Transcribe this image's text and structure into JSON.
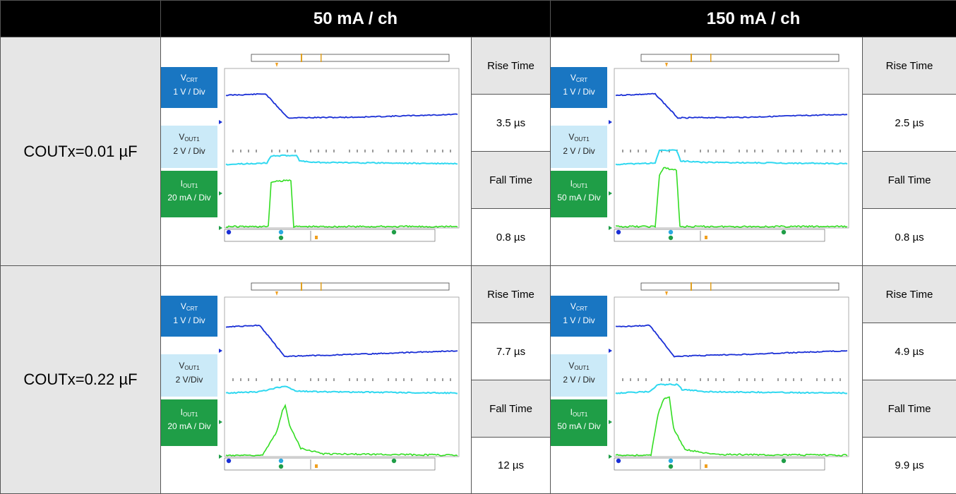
{
  "header": {
    "col1": "50 mA / ch",
    "col2": "150 mA / ch"
  },
  "rows": [
    {
      "label": "COUTx=0.01 µF",
      "cells": [
        {
          "vcrt": {
            "sym": "V",
            "sub": "CRT",
            "scale": "1 V / Div"
          },
          "vout": {
            "sym": "V",
            "sub": "OUT1",
            "scale": "2 V / Div"
          },
          "iout": {
            "sym": "I",
            "sub": "OUT1",
            "scale": "20 mA / Div"
          },
          "rise_label": "Rise Time",
          "rise_value": "3.5 µs",
          "fall_label": "Fall Time",
          "fall_value": "0.8 µs"
        },
        {
          "vcrt": {
            "sym": "V",
            "sub": "CRT",
            "scale": "1 V / Div"
          },
          "vout": {
            "sym": "V",
            "sub": "OUT1",
            "scale": "2 V / Div"
          },
          "iout": {
            "sym": "I",
            "sub": "OUT1",
            "scale": "50 mA / Div"
          },
          "rise_label": "Rise Time",
          "rise_value": "2.5 µs",
          "fall_label": "Fall Time",
          "fall_value": "0.8 µs"
        }
      ]
    },
    {
      "label": "COUTx=0.22 µF",
      "cells": [
        {
          "vcrt": {
            "sym": "V",
            "sub": "CRT",
            "scale": "1 V / Div"
          },
          "vout": {
            "sym": "V",
            "sub": "OUT1",
            "scale": "2 V/Div"
          },
          "iout": {
            "sym": "I",
            "sub": "OUT1",
            "scale": "20 mA / Div"
          },
          "rise_label": "Rise Time",
          "rise_value": "7.7 µs",
          "fall_label": "Fall Time",
          "fall_value": "12 µs"
        },
        {
          "vcrt": {
            "sym": "V",
            "sub": "CRT",
            "scale": "1 V / Div"
          },
          "vout": {
            "sym": "V",
            "sub": "OUT1",
            "scale": "2 V / Div"
          },
          "iout": {
            "sym": "I",
            "sub": "OUT1",
            "scale": "50 mA / Div"
          },
          "rise_label": "Rise Time",
          "rise_value": "4.9 µs",
          "fall_label": "Fall Time",
          "fall_value": "9.9 µs"
        }
      ]
    }
  ],
  "colors": {
    "vcrt_trace": "#1a2fd6",
    "vout_trace": "#2fd8f0",
    "iout_trace": "#33dd22",
    "vcrt_label_bg": "#1976c2",
    "vout_label_bg": "#cbeaf8",
    "iout_label_bg": "#1f9e47",
    "header_bg": "#000000",
    "row_label_bg": "#e6e6e6"
  }
}
